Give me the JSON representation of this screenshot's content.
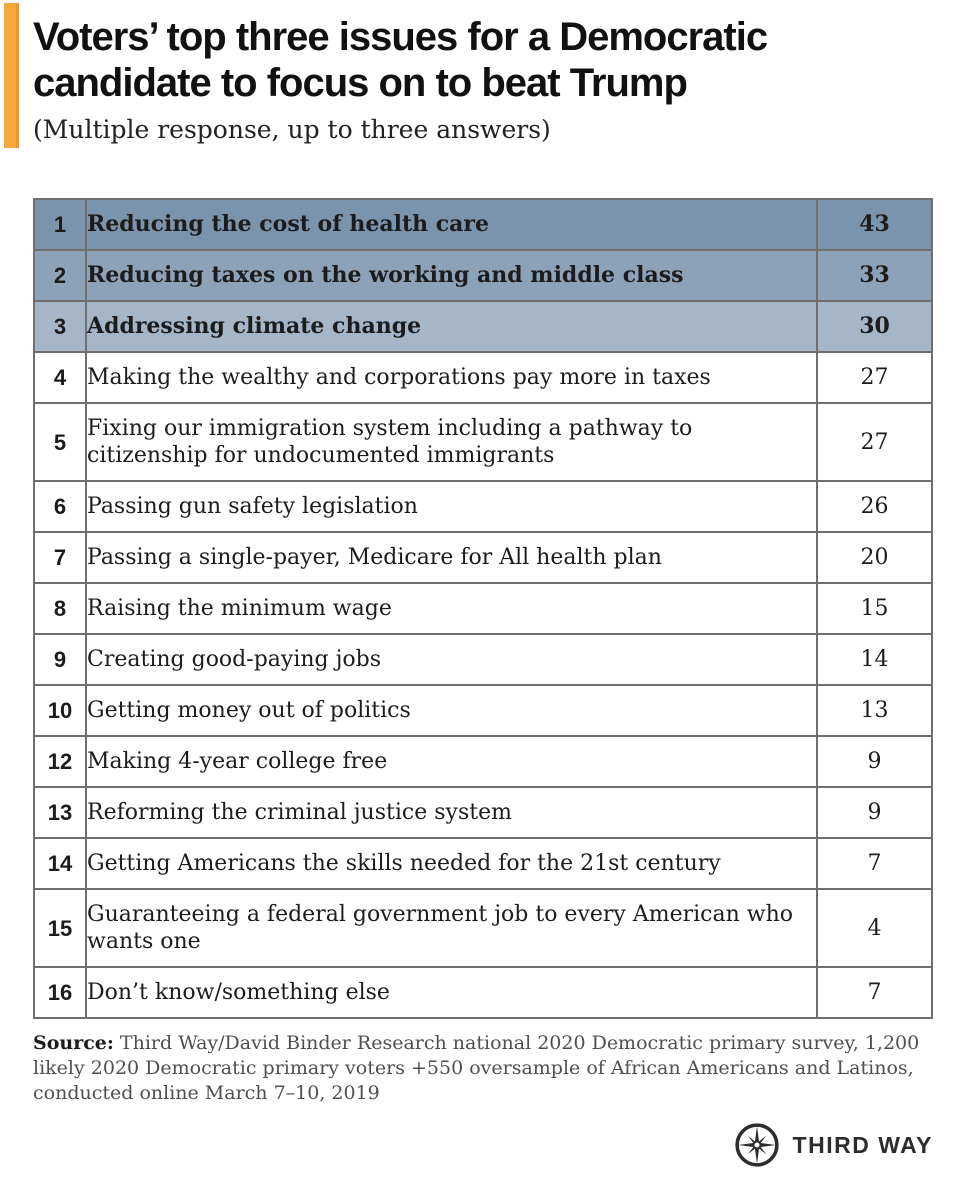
{
  "header": {
    "title": "Voters’ top three issues for a Democratic candidate to focus on to beat Trump",
    "subtitle": "(Multiple response, up to three answers)"
  },
  "table": {
    "rows": [
      {
        "rank": "1",
        "issue": "Reducing the cost of health care",
        "value": "43",
        "highlight": 1
      },
      {
        "rank": "2",
        "issue": "Reducing taxes on the working and middle class",
        "value": "33",
        "highlight": 2
      },
      {
        "rank": "3",
        "issue": "Addressing climate change",
        "value": "30",
        "highlight": 3
      },
      {
        "rank": "4",
        "issue": "Making the wealthy and corporations pay more in taxes",
        "value": "27",
        "highlight": 0
      },
      {
        "rank": "5",
        "issue": "Fixing our immigration system including a pathway to citizenship for undocumented immigrants",
        "value": "27",
        "highlight": 0
      },
      {
        "rank": "6",
        "issue": "Passing gun safety legislation",
        "value": "26",
        "highlight": 0
      },
      {
        "rank": "7",
        "issue": "Passing a single-payer, Medicare for All health plan",
        "value": "20",
        "highlight": 0
      },
      {
        "rank": "8",
        "issue": "Raising the minimum wage",
        "value": "15",
        "highlight": 0
      },
      {
        "rank": "9",
        "issue": "Creating good-paying jobs",
        "value": "14",
        "highlight": 0
      },
      {
        "rank": "10",
        "issue": "Getting money out of politics",
        "value": "13",
        "highlight": 0
      },
      {
        "rank": "12",
        "issue": "Making 4-year college free",
        "value": "9",
        "highlight": 0
      },
      {
        "rank": "13",
        "issue": "Reforming the criminal justice system",
        "value": "9",
        "highlight": 0
      },
      {
        "rank": "14",
        "issue": "Getting Americans the skills needed for the 21st century",
        "value": "7",
        "highlight": 0
      },
      {
        "rank": "15",
        "issue": "Guaranteeing a federal government job to every American who wants one",
        "value": "4",
        "highlight": 0
      },
      {
        "rank": "16",
        "issue": "Don’t know/something else",
        "value": "7",
        "highlight": 0
      }
    ]
  },
  "source": {
    "label": "Source:",
    "text": " Third Way/David Binder Research national 2020 Democratic primary survey, 1,200 likely 2020 Democratic primary voters +550 oversample of African Americans and Latinos, conducted online March 7–10, 2019"
  },
  "logo": {
    "text": "THIRD WAY",
    "mark": "compass-star-icon"
  },
  "colors": {
    "accent": "#f8a73d",
    "accent_dark": "#ee9630",
    "highlight_rows": [
      "#7b94ad",
      "#8ba2b8",
      "#a4b6c7"
    ],
    "border": "#6f6f6f",
    "text": "#1c1c1c",
    "source_text": "#4f4f4f",
    "logo": "#2d2d2d"
  },
  "chart_data": {
    "type": "table",
    "title": "Voters’ top three issues for a Democratic candidate to focus on to beat Trump",
    "subtitle": "(Multiple response, up to three answers)",
    "columns": [
      "rank",
      "issue",
      "percent"
    ],
    "categories": [
      "Reducing the cost of health care",
      "Reducing taxes on the working and middle class",
      "Addressing climate change",
      "Making the wealthy and corporations pay more in taxes",
      "Fixing our immigration system including a pathway to citizenship for undocumented immigrants",
      "Passing gun safety legislation",
      "Passing a single-payer, Medicare for All health plan",
      "Raising the minimum wage",
      "Creating good-paying jobs",
      "Getting money out of politics",
      "Making 4-year college free",
      "Reforming the criminal justice system",
      "Getting Americans the skills needed for the 21st century",
      "Guaranteeing a federal government job to every American who wants one",
      "Don’t know/something else"
    ],
    "ranks": [
      1,
      2,
      3,
      4,
      5,
      6,
      7,
      8,
      9,
      10,
      12,
      13,
      14,
      15,
      16
    ],
    "values": [
      43,
      33,
      30,
      27,
      27,
      26,
      20,
      15,
      14,
      13,
      9,
      9,
      7,
      4,
      7
    ],
    "highlighted_ranks": [
      1,
      2,
      3
    ]
  }
}
